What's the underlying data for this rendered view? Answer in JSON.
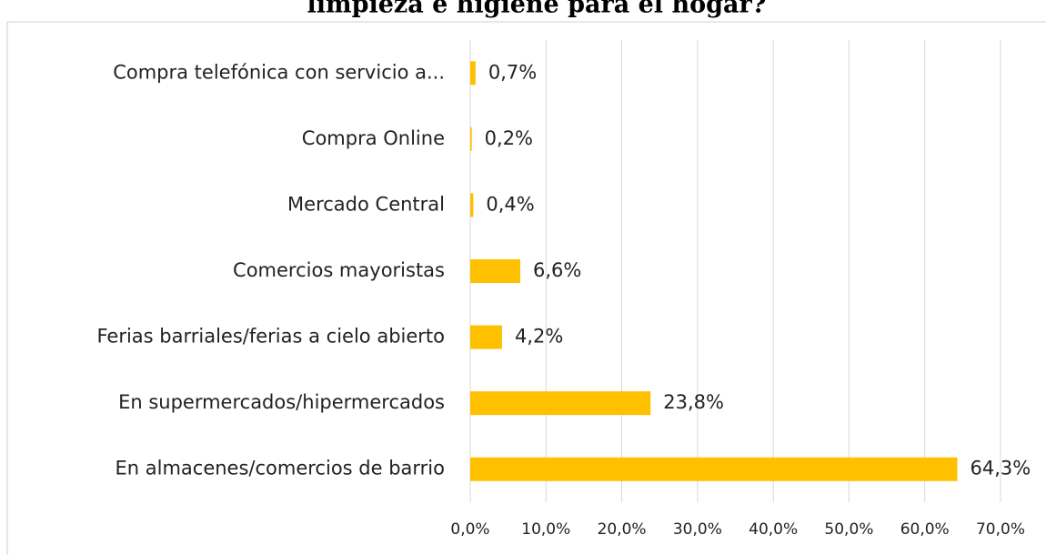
{
  "chart_data": {
    "type": "bar",
    "orientation": "horizontal",
    "title": "limpieza e higiene para el hogar?",
    "categories": [
      "Compra telefónica con servicio a...",
      "Compra Online",
      "Mercado Central",
      "Comercios mayoristas",
      "Ferias barriales/ferias a cielo abierto",
      "En supermercados/hipermercados",
      "En almacenes/comercios de barrio"
    ],
    "values": [
      0.7,
      0.2,
      0.4,
      6.6,
      4.2,
      23.8,
      64.3
    ],
    "value_labels": [
      "0,7%",
      "0,2%",
      "0,4%",
      "6,6%",
      "4,2%",
      "23,8%",
      "64,3%"
    ],
    "color": "#ffc000",
    "xlim": [
      0,
      70
    ],
    "xticks": [
      {
        "value": 0,
        "label": "0,0%"
      },
      {
        "value": 10,
        "label": "10,0%"
      },
      {
        "value": 20,
        "label": "20,0%"
      },
      {
        "value": 30,
        "label": "30,0%"
      },
      {
        "value": 40,
        "label": "40,0%"
      },
      {
        "value": 50,
        "label": "50,0%"
      },
      {
        "value": 60,
        "label": "60,0%"
      },
      {
        "value": 70,
        "label": "70,0%"
      }
    ],
    "grid": true
  }
}
